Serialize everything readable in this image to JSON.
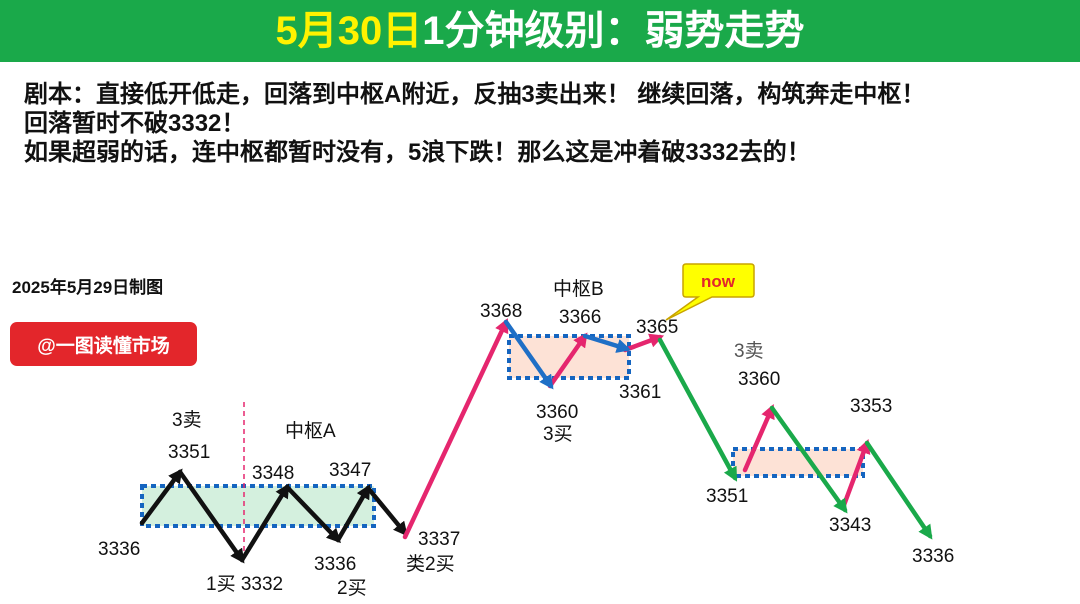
{
  "header": {
    "date": "5月30日",
    "title": "1分钟级别：弱势走势"
  },
  "script_lines": [
    "剧本：直接低开低走，回落到中枢A附近，反抽3卖出来！ 继续回落，构筑奔走中枢！",
    "回落暂时不破3332！",
    "如果超弱的话，连中枢都暂时没有，5浪下跌！那么这是冲着破3332去的！"
  ],
  "made_date": "2025年5月29日制图",
  "brand": "@一图读懂市场",
  "zones": {
    "a": "中枢A",
    "b": "中枢B"
  },
  "callout": "now",
  "labels": {
    "l3336a": "3336",
    "l3351": "3351",
    "l3sellA": "3卖",
    "l1buy": "1买 3332",
    "l3348": "3348",
    "l3336b": "3336",
    "l2buy": "2买",
    "l3347": "3347",
    "l3337": "3337",
    "lsim2buy": "类2买",
    "l3368": "3368",
    "l3366": "3366",
    "l3360a": "3360",
    "l3buyB": "3买",
    "l3365": "3365",
    "l3361": "3361",
    "l3sellB": "3卖",
    "l3360b": "3360",
    "l3351b": "3351",
    "l3353": "3353",
    "l3343": "3343",
    "l3336c": "3336"
  },
  "colors": {
    "up": "#e5266e",
    "down": "#1aa94a",
    "black": "#111111",
    "blue": "#1f6fc6",
    "zone_box": "#1565c0",
    "zone_a_fill": "#d4f0de",
    "zone_fill": "#fde2d6",
    "header_bg": "#1aa94a",
    "brand_bg": "#e3262b"
  }
}
